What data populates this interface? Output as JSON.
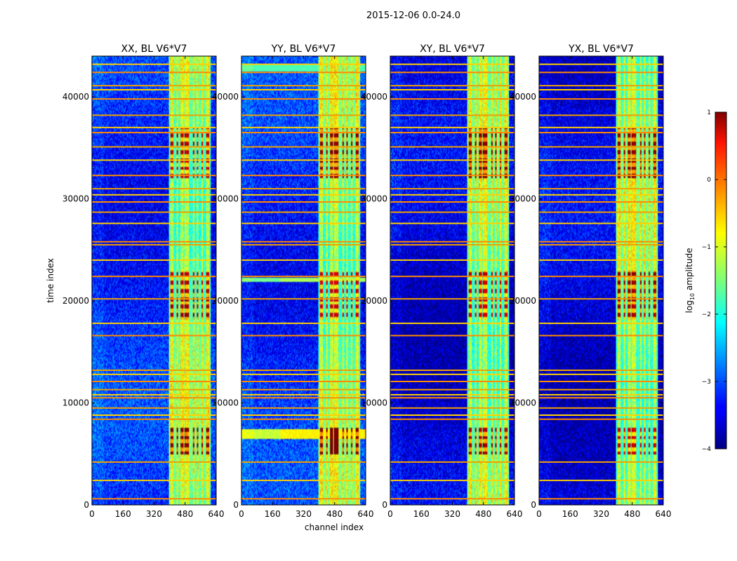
{
  "chart_data": {
    "type": "heatmap",
    "suptitle": "2015-12-06 0.0-24.0",
    "xlabel": "channel index",
    "ylabel": "time index",
    "xlim": [
      0,
      640
    ],
    "ylim": [
      0,
      44000
    ],
    "xticks": [
      0,
      160,
      320,
      480,
      640
    ],
    "yticks": [
      0,
      10000,
      20000,
      30000,
      40000
    ],
    "colormap": "jet",
    "colorbar": {
      "label_main": "log",
      "label_sub": "10",
      "label_rest": " amplitude",
      "range": [
        -4,
        1
      ],
      "ticks": [
        "1",
        "0",
        "−1",
        "−2",
        "−3",
        "−4"
      ]
    },
    "panels": [
      {
        "title": "XX, BL V6*V7",
        "cross_pol": false,
        "yy_extra": false
      },
      {
        "title": "YY, BL V6*V7",
        "cross_pol": false,
        "yy_extra": true
      },
      {
        "title": "XY, BL V6*V7",
        "cross_pol": true,
        "yy_extra": false
      },
      {
        "title": "YX, BL V6*V7",
        "cross_pol": true,
        "yy_extra": false
      }
    ],
    "features": {
      "rfi_bands_channels": [
        [
          405,
          420
        ],
        [
          438,
          444
        ],
        [
          455,
          470
        ],
        [
          478,
          500
        ],
        [
          520,
          528
        ],
        [
          540,
          546
        ],
        [
          565,
          572
        ],
        [
          590,
          604
        ]
      ],
      "strong_time_blocks": [
        [
          5000,
          7600
        ],
        [
          18200,
          23000
        ],
        [
          32000,
          37000
        ]
      ],
      "flagged_rows_time": [
        600,
        2400,
        4200,
        8400,
        8800,
        9500,
        10500,
        10800,
        11300,
        12100,
        12800,
        13200,
        16600,
        17800,
        20200,
        22400,
        24000,
        25500,
        25800,
        27600,
        28700,
        29700,
        30400,
        31000,
        32300,
        33800,
        35100,
        36500,
        37000,
        38200,
        39800,
        40700,
        41100,
        42400,
        43200
      ],
      "background_level": -3.2,
      "band_level": -1.2,
      "strong_level": 0.6
    }
  }
}
